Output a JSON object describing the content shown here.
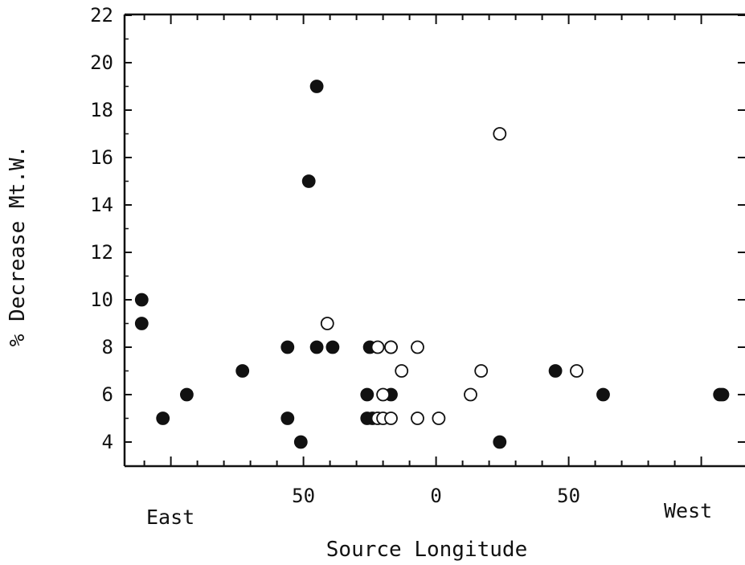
{
  "chart_data": {
    "type": "scatter",
    "title": "",
    "xlabel": "Source Longitude",
    "ylabel": "% Decrease Mt.W.",
    "x_direction_labels": {
      "left": "East",
      "right": "West"
    },
    "x_tick_labels": [
      "50",
      "0",
      "50"
    ],
    "x_tick_values": [
      50,
      0,
      -50
    ],
    "xlim": [
      112,
      -108
    ],
    "ylim": [
      3,
      22
    ],
    "y_ticks": [
      4,
      6,
      8,
      10,
      12,
      14,
      16,
      18,
      20,
      22
    ],
    "grid": false,
    "legend": "none",
    "series": [
      {
        "marker": "filled-circle",
        "points": [
          [
            111,
            10
          ],
          [
            111,
            9
          ],
          [
            103,
            5
          ],
          [
            94,
            6
          ],
          [
            73,
            7
          ],
          [
            56,
            8
          ],
          [
            56,
            5
          ],
          [
            51,
            4
          ],
          [
            45,
            19
          ],
          [
            48,
            15
          ],
          [
            45,
            8
          ],
          [
            39,
            8
          ],
          [
            26,
            6
          ],
          [
            26,
            5
          ],
          [
            24,
            5
          ],
          [
            25,
            8
          ],
          [
            17,
            8
          ],
          [
            17,
            6
          ],
          [
            -45,
            7
          ],
          [
            -63,
            6
          ],
          [
            -24,
            4
          ],
          [
            -107,
            6
          ],
          [
            -108,
            6
          ]
        ]
      },
      {
        "marker": "open-circle",
        "points": [
          [
            41,
            9
          ],
          [
            22,
            8
          ],
          [
            17,
            8
          ],
          [
            7,
            8
          ],
          [
            13,
            7
          ],
          [
            20,
            6
          ],
          [
            22,
            5
          ],
          [
            20,
            5
          ],
          [
            17,
            5
          ],
          [
            7,
            5
          ],
          [
            -1,
            5
          ],
          [
            -13,
            6
          ],
          [
            -17,
            7
          ],
          [
            -24,
            17
          ],
          [
            -53,
            7
          ]
        ]
      }
    ]
  }
}
